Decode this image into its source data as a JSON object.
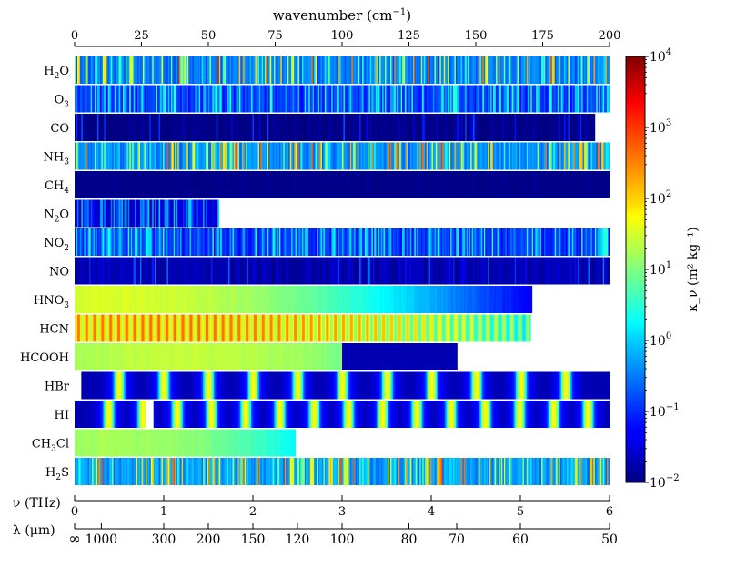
{
  "chart_data": {
    "type": "heatmap",
    "title": "",
    "top_axis": {
      "label": "wavenumber (cm",
      "label_sup": "−1",
      "label_close": ")",
      "range": [
        0,
        200
      ],
      "ticks": [
        0,
        25,
        50,
        75,
        100,
        125,
        150,
        175,
        200
      ]
    },
    "freq_axis": {
      "label": "ν (THz)",
      "range": [
        0,
        6
      ],
      "ticks": [
        0,
        1,
        2,
        3,
        4,
        5,
        6
      ],
      "tick_labels": [
        "0",
        "1",
        "2",
        "3",
        "4",
        "5",
        "6"
      ]
    },
    "wavelength_axis": {
      "label": "λ (μm)",
      "ticks_wavenumber": [
        0,
        10,
        33.33,
        50,
        66.67,
        83.33,
        100,
        125,
        142.86,
        166.67,
        200
      ],
      "tick_labels": [
        "∞",
        "1000",
        "300",
        "200",
        "150",
        "120",
        "100",
        "80",
        "70",
        "60",
        "50"
      ]
    },
    "colorbar": {
      "label": "κ_ν (m² kg⁻¹)",
      "scale": "log",
      "range": [
        0.01,
        10000
      ],
      "ticks": [
        0.01,
        0.1,
        1,
        10,
        100,
        1000,
        10000
      ],
      "tick_base": "10",
      "tick_exponents": [
        "−2",
        "−1",
        "0",
        "1",
        "2",
        "3",
        "4"
      ],
      "colormap": "jet"
    },
    "series": [
      {
        "name": "H2O",
        "label": "H",
        "sub": "2",
        "tail": "O",
        "start": 0,
        "end": 200,
        "base": 0.3,
        "pattern": "lines",
        "seed": 11
      },
      {
        "name": "O3",
        "label": "O",
        "sub": "3",
        "tail": "",
        "start": 0,
        "end": 200,
        "base": 0.12,
        "pattern": "dense",
        "seed": 21
      },
      {
        "name": "CO",
        "label": "CO",
        "sub": "",
        "tail": "",
        "start": 0,
        "end": 194.5,
        "base": 0.01,
        "pattern": "sparse",
        "seed": 31
      },
      {
        "name": "NH3",
        "label": "NH",
        "sub": "3",
        "tail": "",
        "start": 0,
        "end": 200,
        "base": 0.4,
        "pattern": "lines",
        "seed": 41
      },
      {
        "name": "CH4",
        "label": "CH",
        "sub": "4",
        "tail": "",
        "start": 0,
        "end": 200,
        "base": 0.01,
        "pattern": "flat",
        "seed": 51
      },
      {
        "name": "N2O",
        "label": "N",
        "sub": "2",
        "tail": "O",
        "start": 0,
        "end": 54,
        "base": 0.03,
        "pattern": "dense",
        "seed": 61
      },
      {
        "name": "NO2",
        "label": "NO",
        "sub": "2",
        "tail": "",
        "start": 0,
        "end": 200,
        "base": 0.1,
        "pattern": "dense",
        "seed": 71
      },
      {
        "name": "NO",
        "label": "NO",
        "sub": "",
        "tail": "",
        "start": 0,
        "end": 200,
        "base": 0.02,
        "pattern": "sparse",
        "seed": 81
      },
      {
        "name": "HNO3",
        "label": "HNO",
        "sub": "3",
        "tail": "",
        "start": 0,
        "end": 171,
        "base": 0.02,
        "pattern": "smooth",
        "peak": 12,
        "peakval": 40,
        "width": 60,
        "seed": 91
      },
      {
        "name": "HCN",
        "label": "HCN",
        "sub": "",
        "tail": "",
        "start": 0,
        "end": 170.5,
        "base": 0.05,
        "pattern": "comb",
        "peak": 35,
        "peakval": 500,
        "width": 75,
        "spacing": 3,
        "seed": 101
      },
      {
        "name": "HCOOH",
        "label": "HCOOH",
        "sub": "",
        "tail": "",
        "start": 0,
        "end": 143,
        "base": 0.02,
        "pattern": "smoothcut",
        "peak": 40,
        "peakval": 30,
        "width": 60,
        "cut": 100,
        "seed": 111
      },
      {
        "name": "HBr",
        "label": "HBr",
        "sub": "",
        "tail": "",
        "start": 2.5,
        "end": 200,
        "base": 0.02,
        "pattern": "rotlines",
        "spacing": 16.7,
        "offset": 16.7,
        "seed": 121
      },
      {
        "name": "HI",
        "label": "HI",
        "sub": "",
        "tail": "",
        "start": 0,
        "end": 200,
        "base": 0.02,
        "pattern": "rotlines",
        "spacing": 12.8,
        "offset": 12.8,
        "gap": [
          26.5,
          29.2
        ],
        "seed": 131
      },
      {
        "name": "CH3Cl",
        "label": "CH",
        "sub": "3",
        "tail": "Cl",
        "start": 0,
        "end": 82.5,
        "base": 0.02,
        "pattern": "smooth",
        "peak": 15,
        "peakval": 20,
        "width": 45,
        "seed": 141
      },
      {
        "name": "H2S",
        "label": "H",
        "sub": "2",
        "tail": "S",
        "start": 0,
        "end": 200,
        "base": 0.5,
        "pattern": "lines",
        "seed": 151
      }
    ]
  }
}
